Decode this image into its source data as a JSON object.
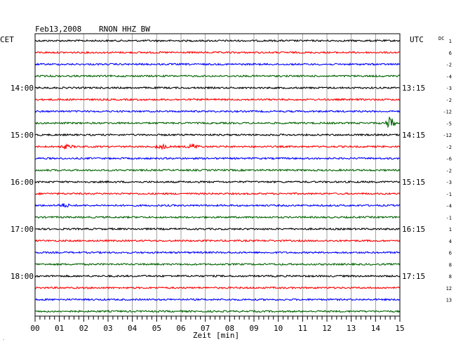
{
  "header": {
    "date": "Feb13,2008",
    "station": "RNON HHZ BW",
    "left_zone": "CET",
    "right_zone": "UTC",
    "dc_label": "DC"
  },
  "chart_data": {
    "type": "line",
    "title": "Feb13,2008   RNON HHZ BW",
    "xlabel": "Zeit [min]",
    "x_range": [
      0,
      15
    ],
    "x_ticks": [
      "00",
      "01",
      "02",
      "03",
      "04",
      "05",
      "06",
      "07",
      "08",
      "09",
      "10",
      "11",
      "12",
      "13",
      "14",
      "15"
    ],
    "trace_count": 24,
    "trace_colors": [
      "#000000",
      "#ff0000",
      "#0000ff",
      "#006400"
    ],
    "cet_labels": [
      {
        "trace": 4,
        "label": "14:00"
      },
      {
        "trace": 8,
        "label": "15:00"
      },
      {
        "trace": 12,
        "label": "16:00"
      },
      {
        "trace": 16,
        "label": "17:00"
      },
      {
        "trace": 20,
        "label": "18:00"
      }
    ],
    "utc_labels": [
      {
        "trace": 4,
        "label": "13:15"
      },
      {
        "trace": 8,
        "label": "14:15"
      },
      {
        "trace": 12,
        "label": "15:15"
      },
      {
        "trace": 16,
        "label": "16:15"
      },
      {
        "trace": 20,
        "label": "17:15"
      }
    ],
    "dc_offsets": [
      "1",
      "6",
      "-2",
      "-4",
      "-3",
      "-2",
      "-12",
      "-5",
      "-12",
      "-2",
      "-6",
      "-2",
      "-3",
      "-1",
      "-4",
      "-1",
      "1",
      "4",
      "6",
      "8",
      "8",
      "12",
      "13"
    ],
    "events": [
      {
        "trace": 7,
        "minute": 14.6,
        "amplitude": "large"
      },
      {
        "trace": 9,
        "minute": 6.5,
        "amplitude": "moderate"
      },
      {
        "trace": 9,
        "minute": 5.2,
        "amplitude": "moderate"
      },
      {
        "trace": 9,
        "minute": 1.3,
        "amplitude": "small"
      },
      {
        "trace": 14,
        "minute": 1.2,
        "amplitude": "small"
      }
    ],
    "grid": true
  },
  "footer": {
    "corner_mark": "′"
  }
}
